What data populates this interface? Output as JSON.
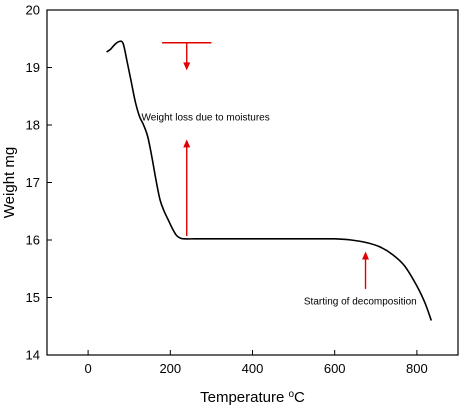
{
  "chart_data": {
    "type": "line",
    "title": "",
    "xlabel_main": "Temperature ",
    "xlabel_sup": "o",
    "xlabel_tail": "C",
    "ylabel": "Weight mg",
    "xlim": [
      -100,
      900
    ],
    "ylim": [
      14,
      20
    ],
    "xticks": [
      0,
      200,
      400,
      600,
      800
    ],
    "yticks": [
      14,
      15,
      16,
      17,
      18,
      19,
      20
    ],
    "grid": false,
    "line_color": "#000000",
    "annotation_color": "#e00000",
    "series": [
      {
        "x": [
          45,
          55,
          65,
          75,
          85,
          95,
          105,
          115,
          125,
          135,
          145,
          155,
          165,
          175,
          185,
          195,
          205,
          215,
          225,
          235,
          260,
          300,
          400,
          500,
          560,
          600,
          640,
          680,
          710,
          740,
          770,
          800,
          820,
          835
        ],
        "values": [
          19.27,
          19.32,
          19.4,
          19.45,
          19.42,
          19.1,
          18.75,
          18.4,
          18.15,
          18.0,
          17.8,
          17.45,
          17.05,
          16.7,
          16.5,
          16.35,
          16.2,
          16.08,
          16.03,
          16.02,
          16.02,
          16.02,
          16.02,
          16.02,
          16.02,
          16.02,
          16.0,
          15.95,
          15.88,
          15.75,
          15.55,
          15.2,
          14.9,
          14.6
        ]
      }
    ],
    "annotations": [
      {
        "text": "Weight loss due to moistures",
        "x": 130,
        "y": 18.08
      },
      {
        "text": "Starting of decomposition",
        "x": 525,
        "y": 14.88
      }
    ],
    "arrows": [
      {
        "x": 240,
        "from_y": 19.43,
        "to_y": 18.95
      },
      {
        "x": 240,
        "from_y": 16.07,
        "to_y": 17.75
      },
      {
        "x": 675,
        "from_y": 15.15,
        "to_y": 15.8
      }
    ],
    "marker_line": {
      "x0": 180,
      "x1": 300,
      "y": 19.43
    }
  }
}
